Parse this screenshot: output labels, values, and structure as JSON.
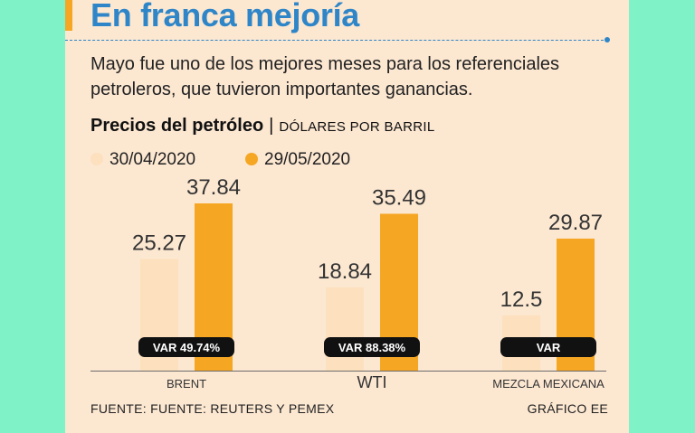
{
  "header": {
    "title": "En franca mejoría",
    "subtitle": "Mayo fue uno de los mejores meses para los referenciales petroleros, que tuvieron importantes ganancias."
  },
  "chart_data": {
    "type": "bar",
    "title": "Precios del petróleo",
    "separator": "|",
    "units": "DÓLARES POR BARRIL",
    "categories": [
      "BRENT",
      "WTI",
      "MEZCLA MEXICANA"
    ],
    "series": [
      {
        "name": "30/04/2020",
        "values": [
          25.27,
          18.84,
          12.5
        ],
        "labels": [
          "25.27",
          "18.84",
          "12.5"
        ],
        "color": "#fde0bd"
      },
      {
        "name": "29/05/2020",
        "values": [
          37.84,
          35.49,
          29.87
        ],
        "labels": [
          "37.84",
          "35.49",
          "29.87"
        ],
        "color": "#f5a623"
      }
    ],
    "variation_labels": [
      "VAR 49.74%",
      "VAR 88.38%",
      "VAR"
    ],
    "ylim": [
      0,
      40
    ]
  },
  "footer": {
    "source": "FUENTE: FUENTE: REUTERS Y PEMEX",
    "credit": "GRÁFICO EE"
  },
  "colors": {
    "accent": "#f5a623",
    "title_blue": "#2e86c8",
    "background": "#7ff2c8",
    "card": "#fce7d1",
    "pill": "#111111"
  }
}
